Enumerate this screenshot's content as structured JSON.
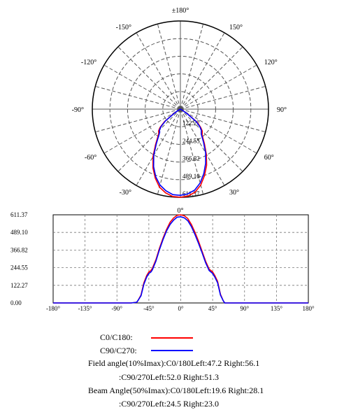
{
  "chart_data": [
    {
      "type": "polar",
      "angle_labels": [
        "±180°",
        "150°",
        "120°",
        "90°",
        "60°",
        "30°",
        "0°",
        "-30°",
        "-60°",
        "-90°",
        "-120°",
        "-150°"
      ],
      "radial_labels": [
        "122.27",
        "244.55",
        "366.82",
        "489.10",
        "611.37"
      ],
      "rmax": 611.37,
      "series": [
        {
          "color": "#ff0000",
          "angles": [
            -62,
            -60,
            -56,
            -52,
            -48,
            -45,
            -42,
            -40,
            -35,
            -30,
            -25,
            -20,
            -15,
            -10,
            -5,
            0,
            5,
            10,
            15,
            20,
            25,
            30,
            35,
            40,
            45,
            48,
            52,
            56,
            60,
            62
          ],
          "values": [
            5,
            20,
            55,
            140,
            190,
            215,
            225,
            240,
            300,
            380,
            450,
            510,
            560,
            590,
            608,
            611,
            605,
            585,
            545,
            490,
            430,
            360,
            290,
            235,
            215,
            190,
            150,
            60,
            15,
            0
          ]
        },
        {
          "color": "#0000ff",
          "angles": [
            -62,
            -60,
            -56,
            -52,
            -48,
            -45,
            -42,
            -40,
            -35,
            -30,
            -25,
            -20,
            -15,
            -10,
            -5,
            0,
            5,
            10,
            15,
            20,
            25,
            30,
            35,
            40,
            45,
            48,
            52,
            56,
            60,
            62
          ],
          "values": [
            5,
            20,
            50,
            130,
            180,
            205,
            215,
            230,
            290,
            370,
            440,
            500,
            545,
            575,
            595,
            598,
            590,
            570,
            530,
            475,
            415,
            350,
            280,
            225,
            205,
            180,
            140,
            55,
            15,
            0
          ]
        }
      ]
    },
    {
      "type": "line",
      "x_ticks": [
        "-180°",
        "-135°",
        "-90°",
        "-45°",
        "0°",
        "45°",
        "90°",
        "135°",
        "180°"
      ],
      "y_ticks": [
        "0.00",
        "122.27",
        "244.55",
        "366.82",
        "489.10",
        "611.37"
      ],
      "xlim": [
        -180,
        180
      ],
      "ylim": [
        0,
        611.37
      ],
      "series": [
        {
          "color": "#ff0000",
          "x": [
            -180,
            -70,
            -62,
            -60,
            -56,
            -52,
            -48,
            -45,
            -42,
            -40,
            -35,
            -30,
            -25,
            -20,
            -15,
            -10,
            -5,
            0,
            5,
            10,
            15,
            20,
            25,
            30,
            35,
            40,
            45,
            48,
            52,
            56,
            60,
            62,
            70,
            180
          ],
          "y": [
            0,
            0,
            5,
            20,
            55,
            140,
            190,
            215,
            225,
            240,
            300,
            380,
            450,
            510,
            560,
            590,
            608,
            611,
            605,
            585,
            545,
            490,
            430,
            360,
            290,
            235,
            215,
            190,
            150,
            60,
            15,
            0,
            0,
            0
          ]
        },
        {
          "color": "#0000ff",
          "x": [
            -180,
            -70,
            -62,
            -60,
            -56,
            -52,
            -48,
            -45,
            -42,
            -40,
            -35,
            -30,
            -25,
            -20,
            -15,
            -10,
            -5,
            0,
            5,
            10,
            15,
            20,
            25,
            30,
            35,
            40,
            45,
            48,
            52,
            56,
            60,
            62,
            70,
            180
          ],
          "y": [
            0,
            0,
            5,
            20,
            50,
            130,
            180,
            205,
            215,
            230,
            290,
            370,
            440,
            500,
            545,
            575,
            595,
            598,
            590,
            570,
            530,
            475,
            415,
            350,
            280,
            225,
            205,
            180,
            140,
            55,
            15,
            0,
            0,
            0
          ]
        }
      ]
    }
  ],
  "legend": [
    {
      "label": "C0/C180:",
      "color": "#ff0000"
    },
    {
      "label": "C90/C270:",
      "color": "#0000ff"
    }
  ],
  "info": {
    "field_c0": "Field angle(10%Imax):C0/180Left:47.2 Right:56.1",
    "field_c90": ":C90/270Left:52.0 Right:51.3",
    "beam_c0": "Beam Angle(50%Imax):C0/180Left:19.6 Right:28.1",
    "beam_c90": ":C90/270Left:24.5 Right:23.0"
  }
}
